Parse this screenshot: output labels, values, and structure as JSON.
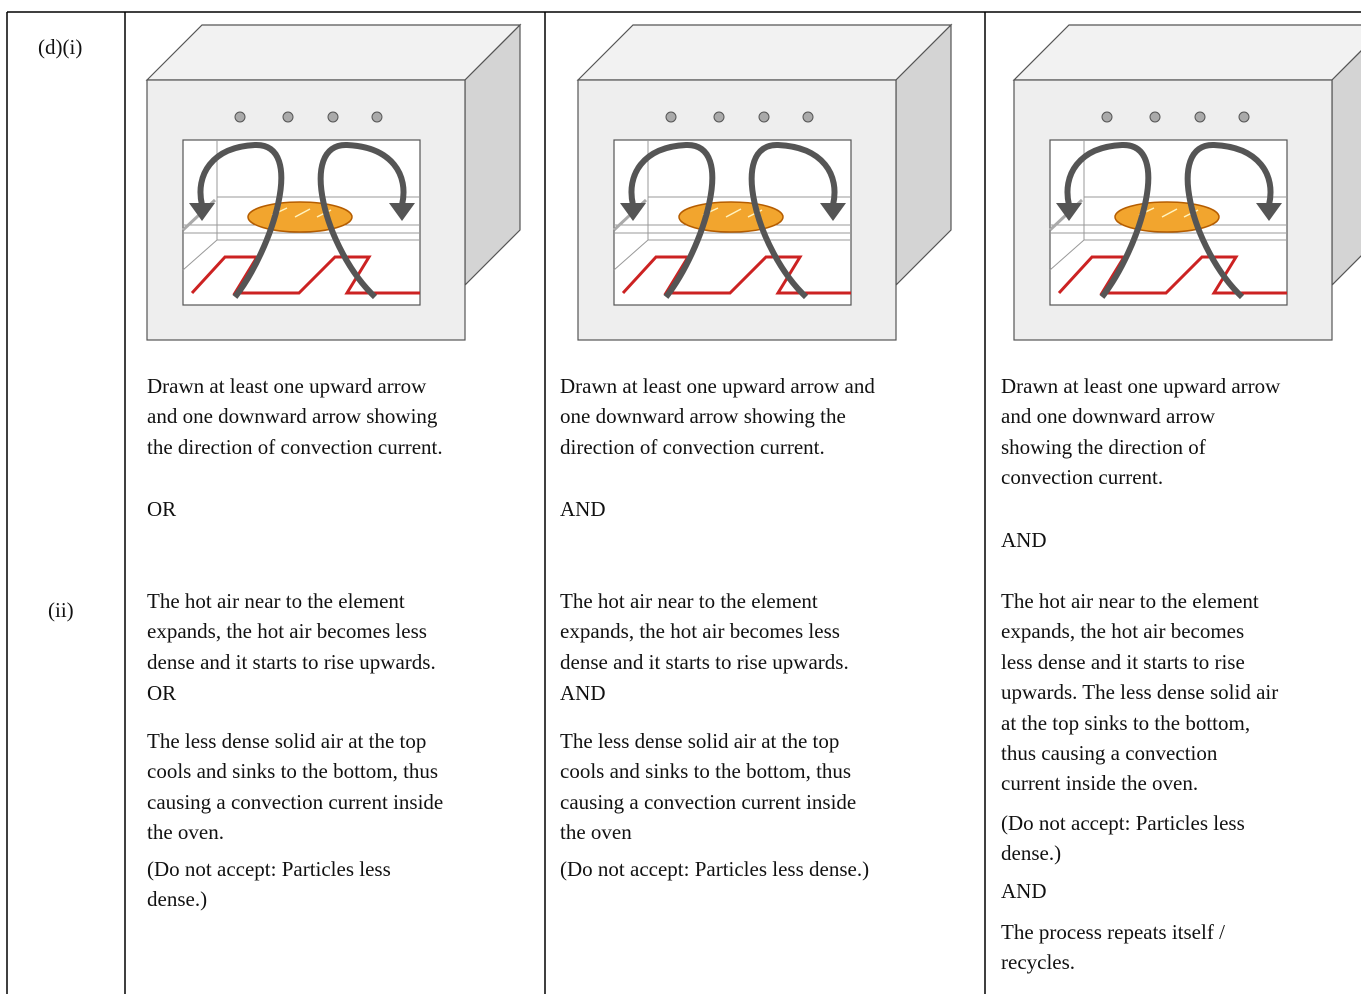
{
  "labels": [
    "(d)(i)",
    "(ii)"
  ],
  "columns": [
    {
      "part_i": [
        "Drawn at least one upward arrow",
        "and one downward arrow showing",
        "the direction of convection current."
      ],
      "connector_i": "OR",
      "part_ii_a": [
        "The hot air near to the element",
        "expands, the hot air becomes less",
        "dense and it starts to rise upwards."
      ],
      "connector_ii": "OR",
      "part_ii_b": [
        "The less dense solid air at the top",
        "cools and sinks to the bottom, thus",
        "causing a convection current inside",
        "the oven."
      ],
      "note": [
        "(Do not accept: Particles less",
        "dense.)"
      ]
    },
    {
      "part_i": [
        "Drawn at least one upward arrow and",
        "one downward arrow showing the",
        "direction of convection current."
      ],
      "connector_i": "AND",
      "part_ii_a": [
        "The hot air near to the element",
        "expands, the hot air becomes less",
        "dense and it starts to rise upwards."
      ],
      "connector_ii": "AND",
      "part_ii_b": [
        "The less dense solid air at the top",
        "cools and sinks to the bottom, thus",
        "causing a convection current inside",
        "the oven"
      ],
      "note": [
        "(Do not accept: Particles less dense.)"
      ]
    },
    {
      "part_i": [
        "Drawn at least one upward arrow",
        "and one downward arrow",
        "showing the direction of",
        "convection current."
      ],
      "connector_i": "AND",
      "part_ii_a": [
        "The hot air near to the element",
        "expands, the hot air becomes",
        "less dense and it starts to rise",
        "upwards. The less dense solid air",
        "at the top sinks to the bottom,",
        "thus causing a convection",
        "current inside the oven."
      ],
      "note": [
        "(Do not accept: Particles less",
        "dense.)"
      ],
      "connector_ii": "AND",
      "part_ii_b": [
        "The process repeats itself /",
        "recycles."
      ]
    }
  ]
}
